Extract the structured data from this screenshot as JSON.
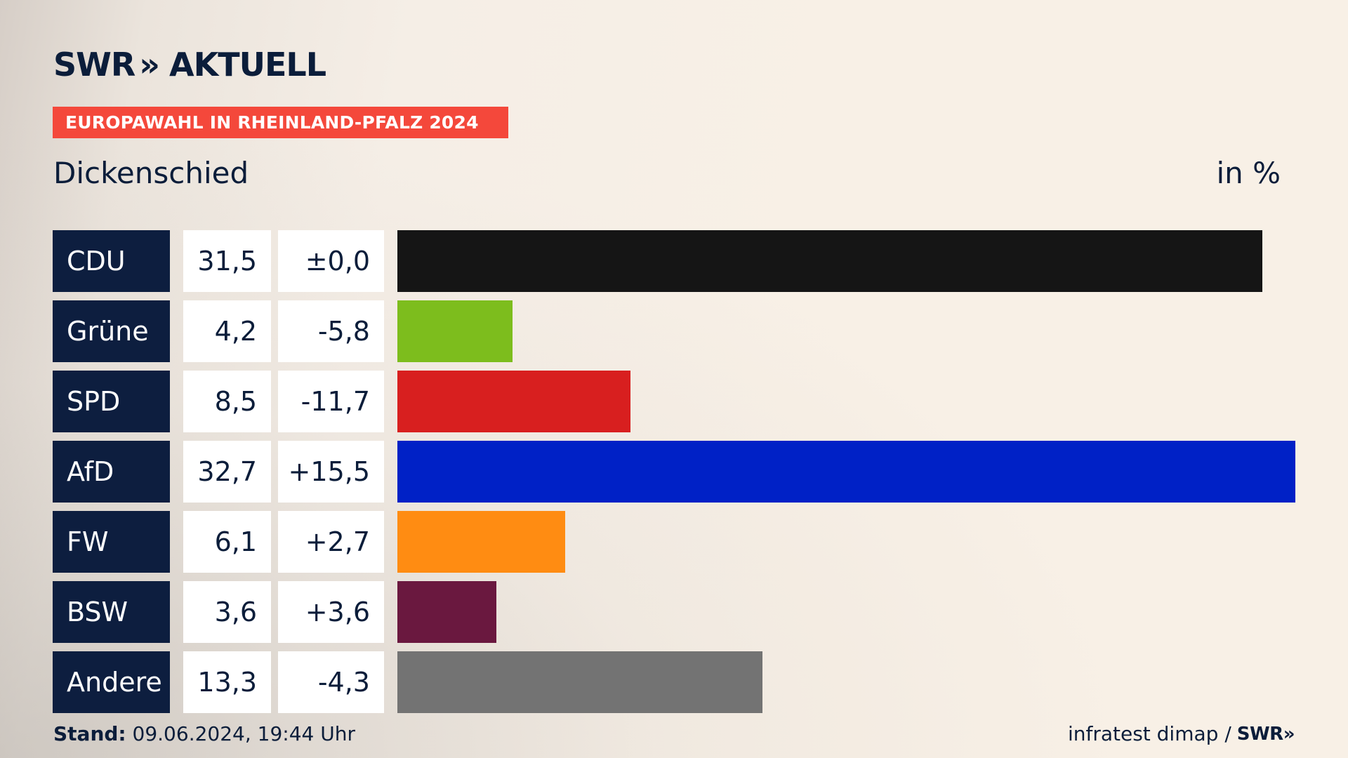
{
  "brand": {
    "logo_text_left": "SWR",
    "logo_text_right": "AKTUELL",
    "chevron": "»"
  },
  "header": {
    "badge": "EUROPAWAHL IN RHEINLAND-PFALZ 2024",
    "subtitle": "Dickenschied",
    "unit": "in %"
  },
  "colors": {
    "badge": "#f4483b",
    "party_cell": "#0d1e3f",
    "text": "#0b1d3a"
  },
  "chart_data": {
    "type": "bar",
    "categories": [
      "CDU",
      "Grüne",
      "SPD",
      "AfD",
      "FW",
      "BSW",
      "Andere"
    ],
    "values": [
      31.5,
      4.2,
      8.5,
      32.7,
      6.1,
      3.6,
      13.3
    ],
    "values_label": [
      "31,5",
      "4,2",
      "8,5",
      "32,7",
      "6,1",
      "3,6",
      "13,3"
    ],
    "diff_label": [
      "±0,0",
      "-5,8",
      "-11,7",
      "+15,5",
      "+2,7",
      "+3,6",
      "-4,3"
    ],
    "colors": [
      "#151515",
      "#7dbd1d",
      "#d81f1f",
      "#0021c6",
      "#ff8c12",
      "#6a183f",
      "#737373"
    ],
    "xlim": [
      0,
      32.7
    ],
    "title": "Dickenschied",
    "ylabel": "in %"
  },
  "footer": {
    "stand_label": "Stand:",
    "stand_value": "09.06.2024, 19:44 Uhr",
    "source": "infratest dimap /",
    "source_brand": "SWR»"
  }
}
